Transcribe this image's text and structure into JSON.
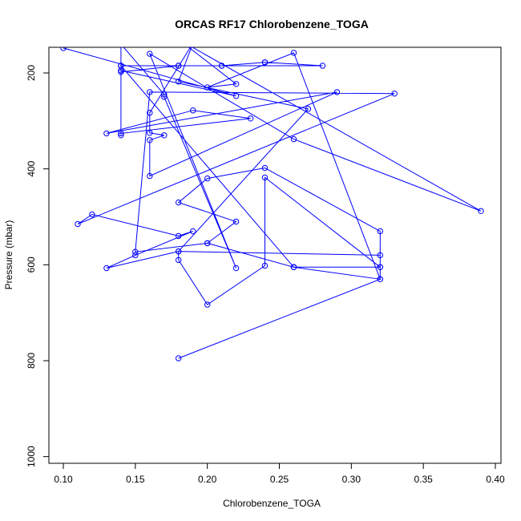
{
  "chart_data": {
    "type": "line",
    "title": "ORCAS RF17 Chlorobenzene_TOGA",
    "xlabel": "Chlorobenzene_TOGA",
    "ylabel": "Pressure (mbar)",
    "xlim": [
      0.085,
      0.4
    ],
    "ylim": [
      1000,
      150
    ],
    "y_reversed": true,
    "x_ticks": [
      0.1,
      0.15,
      0.2,
      0.25,
      0.3,
      0.35,
      0.4
    ],
    "x_tick_labels": [
      "0.10",
      "0.15",
      "0.20",
      "0.25",
      "0.30",
      "0.35",
      "0.40"
    ],
    "y_ticks": [
      200,
      400,
      600,
      800,
      1000
    ],
    "y_tick_labels": [
      "200",
      "400",
      "600",
      "800",
      "1000"
    ],
    "grid": false,
    "marker": "open-circle",
    "series_color": "#0000ff",
    "series": [
      {
        "x": [
          0.1,
          0.22,
          0.14,
          0.14,
          0.18,
          0.18,
          0.21,
          0.24,
          0.24,
          0.28,
          0.21,
          0.14,
          0.14,
          0.26,
          0.2,
          0.15,
          0.16,
          0.33,
          0.11,
          0.12,
          0.18,
          0.19,
          0.15,
          0.13,
          0.18,
          0.18,
          0.2,
          0.24,
          0.24,
          0.32,
          0.26,
          0.26,
          0.32,
          0.32,
          0.18,
          0.27,
          0.18,
          0.19,
          0.16,
          0.16,
          0.17,
          0.16,
          0.16,
          0.29,
          0.13,
          0.19,
          0.23,
          0.14,
          0.14,
          0.14,
          0.14,
          0.17,
          0.17,
          0.22,
          0.16,
          0.26,
          0.39,
          0.18,
          0.22,
          0.2,
          0.26,
          0.32,
          0.32,
          0.24,
          0.2,
          0.18,
          0.22,
          0.2,
          0.26,
          0.32,
          0.18
        ],
        "y": [
          148,
          248,
          195,
          198,
          185,
          185,
          185,
          178,
          178,
          185,
          185,
          185,
          185,
          605,
          555,
          573,
          240,
          243,
          515,
          495,
          540,
          530,
          580,
          607,
          572,
          590,
          683,
          602,
          418,
          605,
          605,
          605,
          605,
          580,
          572,
          275,
          218,
          138,
          283,
          325,
          330,
          340,
          415,
          240,
          326,
          278,
          295,
          326,
          330,
          185,
          140,
          245,
          250,
          607,
          160,
          338,
          488,
          130,
          223,
          230,
          158,
          630,
          530,
          398,
          420,
          470,
          510,
          555,
          605,
          630,
          795
        ]
      }
    ]
  }
}
